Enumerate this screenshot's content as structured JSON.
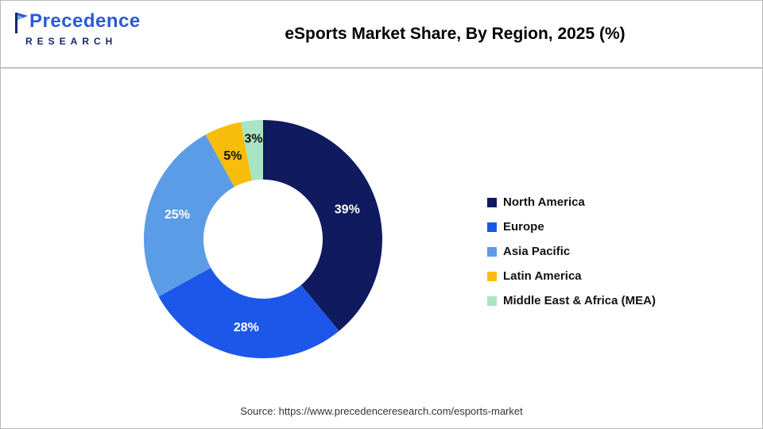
{
  "logo": {
    "line1": "Precedence",
    "line2": "RESEARCH"
  },
  "header": {
    "title": "eSports Market Share, By Region, 2025 (%)"
  },
  "chart_data": {
    "type": "pie",
    "subtype": "donut",
    "title": "eSports Market Share, By Region, 2025 (%)",
    "categories": [
      "North America",
      "Europe",
      "Asia Pacific",
      "Latin America",
      "Middle East & Africa (MEA)"
    ],
    "values": [
      39,
      28,
      25,
      5,
      3
    ],
    "unit": "%",
    "data_labels": [
      "39%",
      "28%",
      "25%",
      "5%",
      "3%"
    ],
    "colors": [
      "#101a5e",
      "#1c57ea",
      "#5b9ce6",
      "#f8bd0b",
      "#a9e4c2"
    ],
    "label_colors": [
      "#ffffff",
      "#ffffff",
      "#ffffff",
      "#111111",
      "#111111"
    ],
    "legend_position": "right",
    "start_angle_deg": -90,
    "direction": "clockwise",
    "inner_radius_ratio": 0.5
  },
  "footer": {
    "source": "Source: https://www.precedenceresearch.com/esports-market"
  }
}
